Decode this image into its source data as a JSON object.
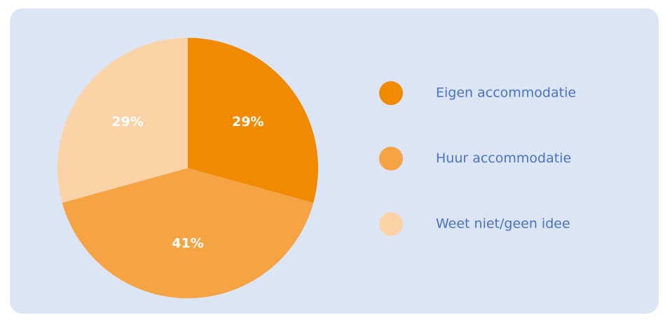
{
  "chart_data": {
    "type": "pie",
    "categories": [
      "Eigen accommodatie",
      "Huur accommodatie",
      "Weet niet/geen idee"
    ],
    "values": [
      29,
      41,
      29
    ],
    "value_labels": [
      "29%",
      "41%",
      "29%"
    ],
    "colors": [
      "#f08a00",
      "#f5a343",
      "#fcd2a7"
    ],
    "legend": "right"
  }
}
